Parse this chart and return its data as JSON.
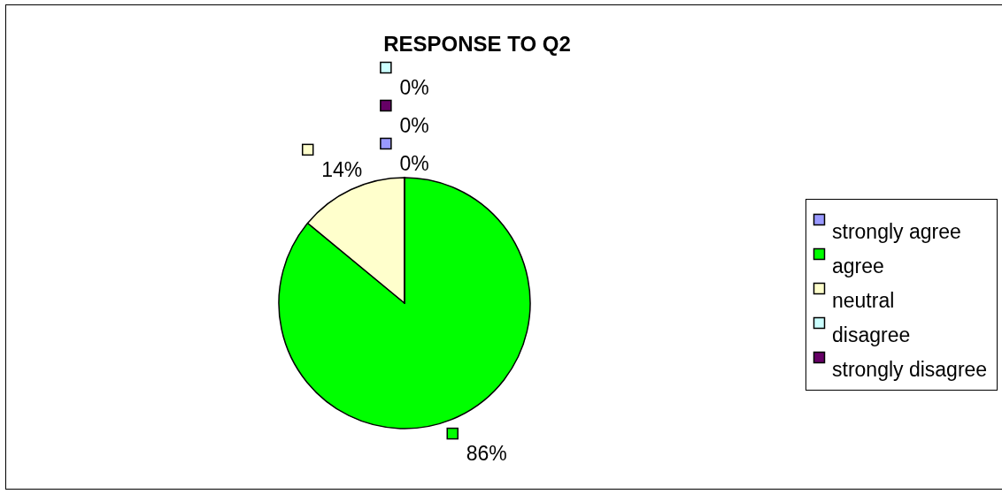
{
  "chart_data": {
    "type": "pie",
    "title": "RESPONSE TO Q2",
    "categories": [
      "strongly agree",
      "agree",
      "neutral",
      "disagree",
      "strongly disagree"
    ],
    "values": [
      0,
      86,
      14,
      0,
      0
    ],
    "colors": [
      "#9999ff",
      "#00ff00",
      "#ffffcc",
      "#ccffff",
      "#660066"
    ],
    "value_labels": [
      "0%",
      "86%",
      "14%",
      "0%",
      "0%"
    ],
    "legend": "right"
  }
}
